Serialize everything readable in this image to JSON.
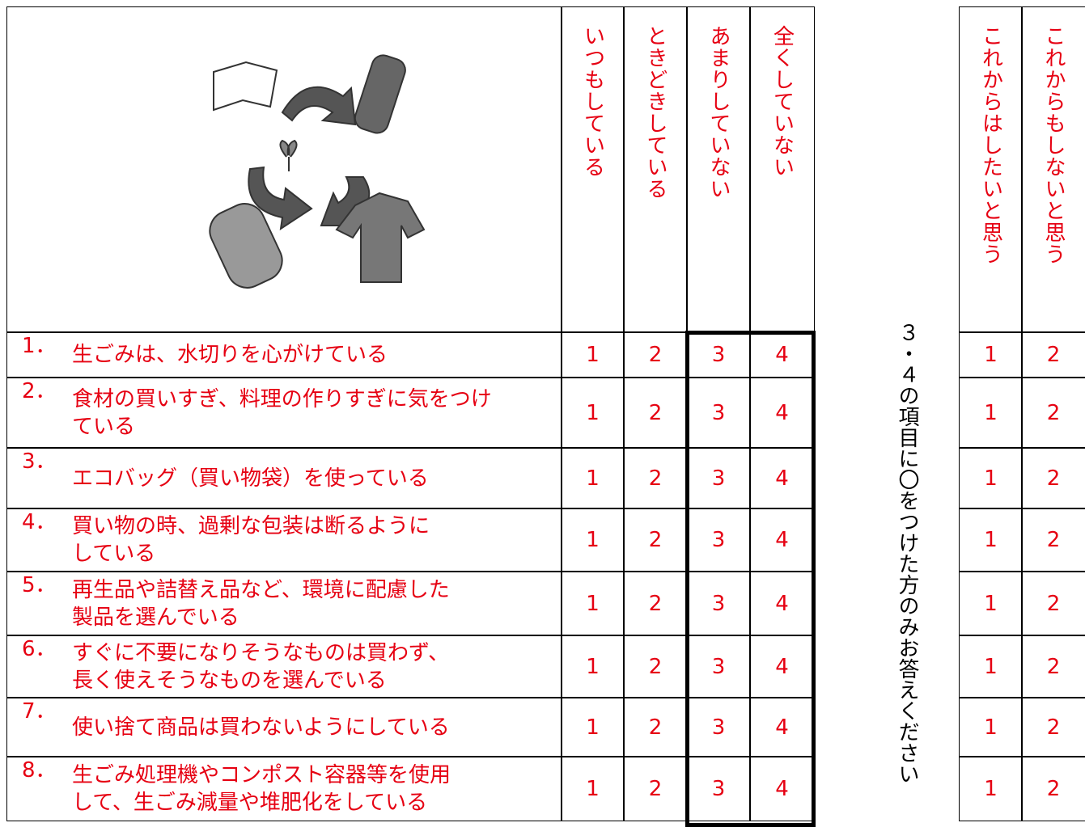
{
  "table": {
    "headers": [
      "いつもしている",
      "ときどきしている",
      "あまりしていない",
      "全くしていない"
    ],
    "after_headers": [
      "これからはしたいと思う",
      "これからもしないと思う"
    ],
    "note": "３・４の項目に〇をつけた方のみお答えください",
    "rows": [
      {
        "number": "1．",
        "lines": [
          "生ごみは、水切りを心がけている"
        ],
        "choices": [
          1,
          2,
          3,
          4
        ],
        "after": [
          1,
          2
        ]
      },
      {
        "number": "2．",
        "lines": [
          "食材の買いすぎ、料理の作りすぎに気をつけ",
          "ている"
        ],
        "choices": [
          1,
          2,
          3,
          4
        ],
        "after": [
          1,
          2
        ]
      },
      {
        "number": "3．",
        "lines": [
          "エコバッグ（買い物袋）を使っている"
        ],
        "choices": [
          1,
          2,
          3,
          4
        ],
        "after": [
          1,
          2
        ]
      },
      {
        "number": "4．",
        "lines": [
          "買い物の時、過剰な包装は断るように",
          "している"
        ],
        "choices": [
          1,
          2,
          3,
          4
        ],
        "after": [
          1,
          2
        ]
      },
      {
        "number": "5．",
        "lines": [
          "再生品や詰替え品など、環境に配慮した",
          "製品を選んでいる"
        ],
        "choices": [
          1,
          2,
          3,
          4
        ],
        "after": [
          1,
          2
        ]
      },
      {
        "number": "6．",
        "lines": [
          "すぐに不要になりそうなものは買わず、",
          "長く使えそうなものを選んでいる"
        ],
        "choices": [
          1,
          2,
          3,
          4
        ],
        "after": [
          1,
          2
        ]
      },
      {
        "number": "7．",
        "lines": [
          "使い捨て商品は買わないようにしている"
        ],
        "choices": [
          1,
          2,
          3,
          4
        ],
        "after": [
          1,
          2
        ]
      },
      {
        "number": "8．",
        "lines": [
          "生ごみ処理機やコンポスト容器等を使用",
          "して、生ごみ減量や堆肥化をしている"
        ],
        "choices": [
          1,
          2,
          3,
          4
        ],
        "after": [
          1,
          2
        ]
      }
    ]
  }
}
